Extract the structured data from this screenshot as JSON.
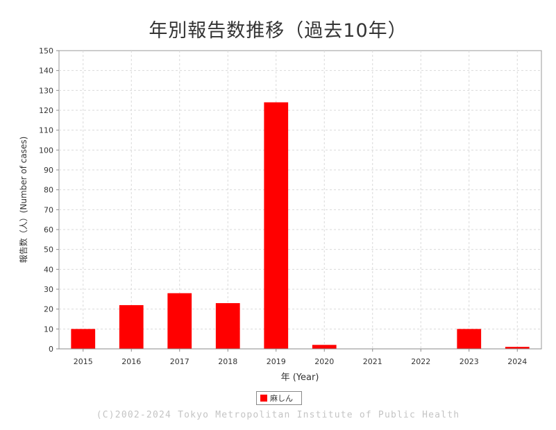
{
  "title": "年別報告数推移（過去10年）",
  "copyright": "(C)2002-2024 Tokyo Metropolitan Institute of Public Health",
  "chart_data": {
    "type": "bar",
    "categories": [
      "2015",
      "2016",
      "2017",
      "2018",
      "2019",
      "2020",
      "2021",
      "2022",
      "2023",
      "2024"
    ],
    "series": [
      {
        "name": "麻しん",
        "values": [
          10,
          22,
          28,
          23,
          124,
          2,
          0,
          0,
          10,
          1
        ],
        "color": "#ff0000"
      }
    ],
    "xlabel": "年 (Year)",
    "ylabel": "報告数（人）(Number of cases)",
    "ylim": [
      0,
      150
    ],
    "yticks": [
      0,
      10,
      20,
      30,
      40,
      50,
      60,
      70,
      80,
      90,
      100,
      110,
      120,
      130,
      140,
      150
    ],
    "grid": true,
    "legend_position": "bottom-center"
  }
}
